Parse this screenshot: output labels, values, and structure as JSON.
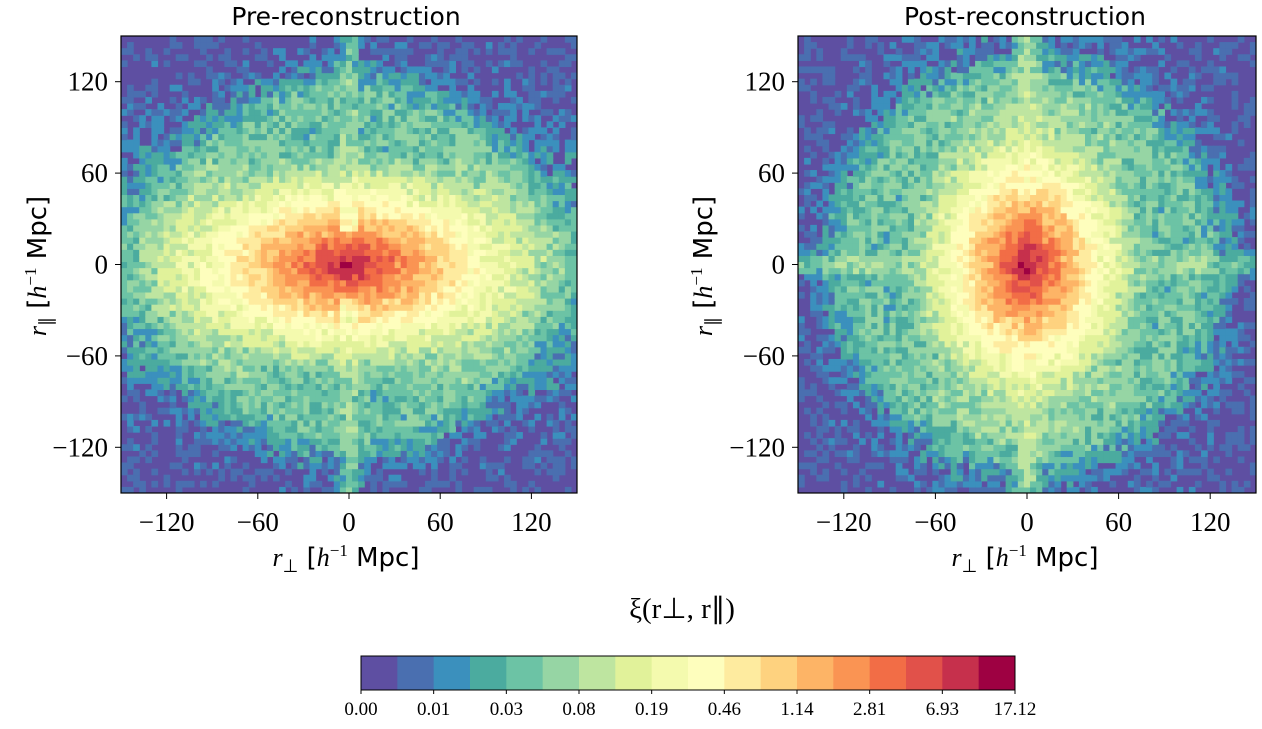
{
  "chart_data": [
    {
      "type": "heatmap",
      "title": "Pre-reconstruction",
      "xlabel": "r⊥ [h⁻¹ Mpc]",
      "ylabel": "r∥ [h⁻¹ Mpc]",
      "xlim": [
        -150,
        150
      ],
      "ylim": [
        -150,
        150
      ],
      "xticks": [
        -120,
        -60,
        0,
        60,
        120
      ],
      "yticks": [
        -120,
        -60,
        0,
        60,
        120
      ],
      "xtick_labels": [
        "−120",
        "−60",
        "0",
        "60",
        "120"
      ],
      "ytick_labels": [
        "120",
        "60",
        "0",
        "−60",
        "−120"
      ],
      "shape": {
        "rx": 95,
        "ry": 48,
        "bao_radius": 108
      },
      "grid": false
    },
    {
      "type": "heatmap",
      "title": "Post-reconstruction",
      "xlabel": "r⊥ [h⁻¹ Mpc]",
      "ylabel": "r∥ [h⁻¹ Mpc]",
      "xlim": [
        -150,
        150
      ],
      "ylim": [
        -150,
        150
      ],
      "xticks": [
        -120,
        -60,
        0,
        60,
        120
      ],
      "yticks": [
        -120,
        -60,
        0,
        60,
        120
      ],
      "xtick_labels": [
        "−120",
        "−60",
        "0",
        "60",
        "120"
      ],
      "ytick_labels": [
        "120",
        "60",
        "0",
        "−60",
        "−120"
      ],
      "shape": {
        "rx": 52,
        "ry": 68,
        "bao_radius": 112
      },
      "grid": false
    }
  ],
  "colorbar": {
    "label": "ξ(r⊥, r∥)",
    "tick_labels": [
      "0.00",
      "0.01",
      "0.03",
      "0.08",
      "0.19",
      "0.46",
      "1.14",
      "2.81",
      "6.93",
      "17.12"
    ],
    "colors": [
      "#5e4fa2",
      "#4a6fb0",
      "#3b90bd",
      "#4bab9f",
      "#6cc3a5",
      "#96d5a4",
      "#bee5a0",
      "#e1f29a",
      "#f4faae",
      "#fefebd",
      "#feeb9f",
      "#fed27f",
      "#fdb466",
      "#fa9453",
      "#f26d46",
      "#e1514a",
      "#c6304c",
      "#9e0142"
    ]
  }
}
